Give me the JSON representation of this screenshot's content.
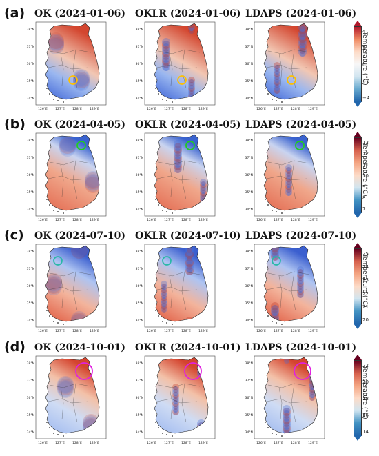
{
  "figure": {
    "rows": [
      {
        "label": "(a)",
        "panels": [
          {
            "title": "OK (2024-01-06)",
            "scheme": "cold"
          },
          {
            "title": "OKLR (2024-01-06)",
            "scheme": "cold"
          },
          {
            "title": "LDAPS (2024-01-06)",
            "scheme": "cold"
          }
        ],
        "marker_color": "#ffc000",
        "colorbar": {
          "label": "Temperature (°C)",
          "ticks": [
            "4",
            "2",
            "0",
            "−2",
            "−4"
          ]
        }
      },
      {
        "label": "(b)",
        "panels": [
          {
            "title": "OK (2024-04-05)",
            "scheme": "warm"
          },
          {
            "title": "OKLR (2024-04-05)",
            "scheme": "warm"
          },
          {
            "title": "LDAPS (2024-04-05)",
            "scheme": "warm"
          }
        ],
        "marker_color": "#22cc22",
        "colorbar": {
          "label": "Temperature (°C)",
          "ticks": [
            "13",
            "12",
            "11",
            "10",
            "9",
            "8",
            "7"
          ]
        }
      },
      {
        "label": "(c)",
        "panels": [
          {
            "title": "OK (2024-07-10)",
            "scheme": "mixed"
          },
          {
            "title": "OKLR (2024-07-10)",
            "scheme": "mixed"
          },
          {
            "title": "LDAPS (2024-07-10)",
            "scheme": "mixed"
          }
        ],
        "marker_color": "#2ab8a8",
        "colorbar": {
          "label": "Temperature (°C)",
          "ticks": [
            "25",
            "24",
            "23",
            "22",
            "21",
            "20"
          ]
        }
      },
      {
        "label": "(d)",
        "panels": [
          {
            "title": "OK (2024-10-01)",
            "scheme": "autumn"
          },
          {
            "title": "OKLR (2024-10-01)",
            "scheme": "autumn"
          },
          {
            "title": "LDAPS (2024-10-01)",
            "scheme": "autumn"
          }
        ],
        "marker_color": "#e020e0",
        "colorbar": {
          "label": "Temperature (°C)",
          "ticks": [
            "22",
            "20",
            "18",
            "16",
            "14"
          ]
        }
      }
    ],
    "lat_ticks": [
      "38°N",
      "37°N",
      "36°N",
      "35°N",
      "34°N"
    ],
    "lon_ticks": [
      "126°E",
      "127°E",
      "128°E",
      "129°E"
    ]
  }
}
